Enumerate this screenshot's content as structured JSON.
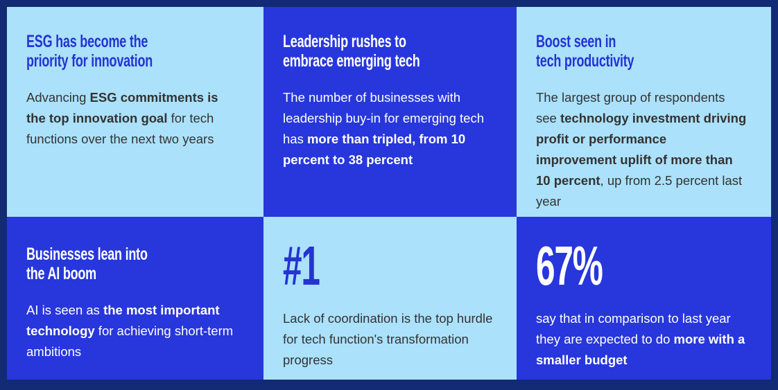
{
  "theme": {
    "navy": "#132a74",
    "blue": "#2737db",
    "light": "#abe1fb",
    "titleblue": "#2434d3",
    "bodydark": "#333333",
    "white": "#ffffff"
  },
  "cards": [
    {
      "variant": "light",
      "title": "ESG has become the\npriority for innovation",
      "body": [
        {
          "t": "Advancing "
        },
        {
          "t": "ESG commitments is the top innovation goal",
          "b": true
        },
        {
          "t": " for tech functions over the next two years"
        }
      ]
    },
    {
      "variant": "blue",
      "title": "Leadership rushes to\nembrace emerging tech",
      "body": [
        {
          "t": "The number of businesses with leadership buy-in for emerging tech has "
        },
        {
          "t": "more than tripled, from 10 percent to 38 percent",
          "b": true
        }
      ]
    },
    {
      "variant": "light",
      "title": "Boost seen in\ntech productivity",
      "body": [
        {
          "t": "The largest group of respondents see "
        },
        {
          "t": "technology investment driving profit or performance improvement uplift of more than 10 percent",
          "b": true
        },
        {
          "t": ", up from 2.5 percent last year"
        }
      ]
    },
    {
      "variant": "blue",
      "title": "Businesses lean into\nthe AI boom",
      "body": [
        {
          "t": "AI is seen as "
        },
        {
          "t": "the most important technology",
          "b": true
        },
        {
          "t": " for achieving short-term ambitions"
        }
      ]
    },
    {
      "variant": "light",
      "number": "#1",
      "body": [
        {
          "t": "Lack of coordination is the top hurdle for tech function's transformation progress"
        }
      ]
    },
    {
      "variant": "blue",
      "number": "67%",
      "body": [
        {
          "t": "say that in comparison to last year they are expected to do "
        },
        {
          "t": "more with a smaller budget",
          "b": true
        }
      ]
    }
  ]
}
